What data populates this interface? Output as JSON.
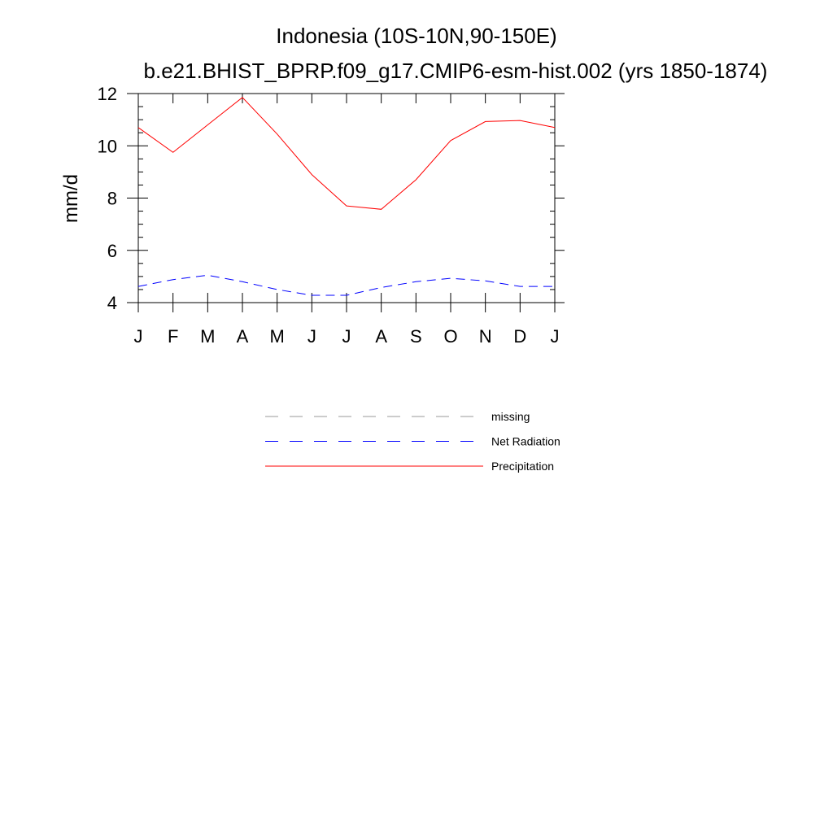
{
  "chart_data": {
    "type": "line",
    "title": "Indonesia (10S-10N,90-150E)",
    "subtitle": "b.e21.BHIST_BPRP.f09_g17.CMIP6-esm-hist.002 (yrs 1850-1874)",
    "xlabel": "",
    "ylabel": "mm/d",
    "categories": [
      "J",
      "F",
      "M",
      "A",
      "M",
      "J",
      "J",
      "A",
      "S",
      "O",
      "N",
      "D",
      "J"
    ],
    "ylim": [
      4,
      12
    ],
    "yticks": [
      4,
      6,
      8,
      10,
      12
    ],
    "grid": false,
    "legend_placement": "bottom",
    "series": [
      {
        "name": "Precipitation",
        "color": "#ff0000",
        "dash": "solid",
        "values": [
          10.7,
          9.75,
          10.8,
          11.85,
          10.45,
          8.9,
          7.7,
          7.57,
          8.7,
          10.2,
          10.93,
          10.97,
          10.7
        ]
      },
      {
        "name": "Net Radiation",
        "color": "#0000ff",
        "dash": "dashed",
        "values": [
          4.62,
          4.88,
          5.05,
          4.8,
          4.5,
          4.28,
          4.28,
          4.58,
          4.8,
          4.93,
          4.83,
          4.62,
          4.62
        ]
      }
    ],
    "legend": [
      {
        "name": "missing",
        "color": "#999999",
        "dash": "dashed"
      },
      {
        "name": "Net Radiation",
        "color": "#0000ff",
        "dash": "dashed"
      },
      {
        "name": "Precipitation",
        "color": "#ff0000",
        "dash": "solid"
      }
    ]
  }
}
